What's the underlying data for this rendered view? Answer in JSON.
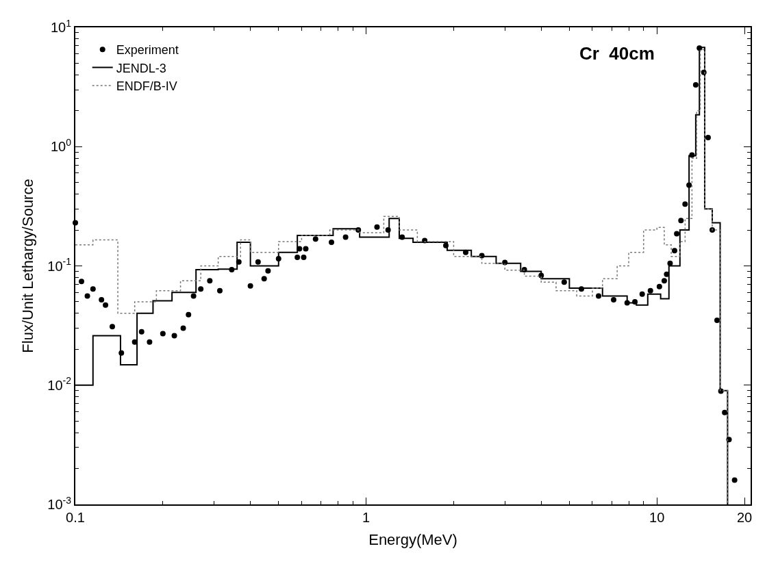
{
  "chart_data": {
    "type": "scatter",
    "xlabel": "Energy(MeV)",
    "ylabel": "Flux/Unit Lethargy/Source",
    "annotations": [
      "Cr  40cm"
    ],
    "log": "xy",
    "xlim": [
      0.1,
      21
    ],
    "ylim": [
      0.001,
      10
    ],
    "xticks": [
      0.1,
      1,
      10,
      20
    ],
    "yticks": [
      {
        "value": 0.001,
        "label": "10$^{-3}$"
      },
      {
        "value": 0.01,
        "label": "10$^{-2}$"
      },
      {
        "value": 0.1,
        "label": "10$^{-1}$"
      },
      {
        "value": 1,
        "label": "10$^{0}$"
      },
      {
        "value": 10,
        "label": "10$^{1}$"
      }
    ],
    "legend": "top left",
    "series": [
      {
        "name": "Experiment",
        "marker": "circle",
        "color": "#000000",
        "x": [
          0.1,
          0.105,
          0.11,
          0.115,
          0.123,
          0.127,
          0.134,
          0.144,
          0.16,
          0.169,
          0.18,
          0.2,
          0.219,
          0.235,
          0.245,
          0.255,
          0.27,
          0.29,
          0.314,
          0.345,
          0.365,
          0.4,
          0.425,
          0.446,
          0.46,
          0.5,
          0.58,
          0.59,
          0.61,
          0.62,
          0.67,
          0.76,
          0.85,
          0.94,
          1.09,
          1.19,
          1.33,
          1.59,
          1.88,
          2.2,
          2.5,
          3.0,
          3.5,
          4.0,
          4.8,
          5.5,
          6.3,
          7.1,
          7.9,
          8.4,
          8.9,
          9.5,
          10.2,
          10.6,
          10.8,
          11.1,
          11.5,
          11.7,
          12.1,
          12.5,
          12.9,
          13.2,
          13.6,
          14.0,
          14.5,
          15.0,
          15.5,
          16.1,
          16.6,
          17.1,
          17.7,
          18.5
        ],
        "values": [
          0.23,
          0.074,
          0.056,
          0.064,
          0.052,
          0.047,
          0.031,
          0.0186,
          0.023,
          0.028,
          0.023,
          0.027,
          0.026,
          0.03,
          0.039,
          0.056,
          0.064,
          0.075,
          0.062,
          0.093,
          0.108,
          0.068,
          0.108,
          0.078,
          0.091,
          0.115,
          0.118,
          0.139,
          0.118,
          0.139,
          0.168,
          0.158,
          0.174,
          0.2,
          0.212,
          0.2,
          0.174,
          0.163,
          0.148,
          0.13,
          0.122,
          0.107,
          0.093,
          0.083,
          0.073,
          0.064,
          0.056,
          0.052,
          0.049,
          0.05,
          0.058,
          0.062,
          0.067,
          0.075,
          0.085,
          0.105,
          0.134,
          0.186,
          0.24,
          0.33,
          0.475,
          0.85,
          3.3,
          6.7,
          4.2,
          1.19,
          0.2,
          0.035,
          0.0089,
          0.0059,
          0.0035,
          0.0016
        ]
      },
      {
        "name": "JENDL-3",
        "type": "step",
        "line_style": "solid",
        "color": "#000000",
        "x": [
          0.1,
          0.115,
          0.143,
          0.163,
          0.185,
          0.215,
          0.26,
          0.31,
          0.36,
          0.4,
          0.5,
          0.58,
          0.77,
          0.95,
          1.2,
          1.3,
          1.45,
          1.9,
          2.3,
          2.8,
          3.4,
          4.0,
          5.0,
          6.5,
          7.9,
          8.5,
          9.3,
          10.3,
          11.0,
          12.0,
          12.9,
          13.6,
          14.0,
          14.6,
          15.5,
          16.5,
          17.5
        ],
        "values": [
          0.01,
          0.026,
          0.0148,
          0.04,
          0.051,
          0.06,
          0.093,
          0.094,
          0.158,
          0.1,
          0.13,
          0.18,
          0.205,
          0.174,
          0.25,
          0.17,
          0.158,
          0.135,
          0.12,
          0.105,
          0.09,
          0.078,
          0.065,
          0.056,
          0.049,
          0.047,
          0.058,
          0.053,
          0.1,
          0.2,
          0.84,
          1.85,
          6.8,
          0.3,
          0.23,
          0.009,
          0.001
        ]
      },
      {
        "name": "ENDF/B-IV",
        "type": "step",
        "line_style": "dotted",
        "color": "#777777",
        "x": [
          0.1,
          0.115,
          0.14,
          0.16,
          0.19,
          0.23,
          0.27,
          0.31,
          0.37,
          0.4,
          0.5,
          0.6,
          0.75,
          0.95,
          1.15,
          1.3,
          1.5,
          2.0,
          2.5,
          3.0,
          3.5,
          4.0,
          4.5,
          5.3,
          6.0,
          6.5,
          7.3,
          8.0,
          9.0,
          10.0,
          10.6,
          11.2,
          12.0,
          12.5,
          13.2,
          13.7,
          14.1,
          14.6,
          15.5,
          16.5,
          17.5
        ],
        "values": [
          0.15,
          0.165,
          0.04,
          0.05,
          0.062,
          0.075,
          0.1,
          0.12,
          0.165,
          0.13,
          0.16,
          0.18,
          0.2,
          0.19,
          0.26,
          0.2,
          0.16,
          0.12,
          0.105,
          0.092,
          0.082,
          0.073,
          0.062,
          0.056,
          0.065,
          0.078,
          0.1,
          0.13,
          0.2,
          0.21,
          0.15,
          0.12,
          0.16,
          0.25,
          0.8,
          2.0,
          6.5,
          0.3,
          0.2,
          0.009,
          0.001
        ]
      }
    ]
  }
}
